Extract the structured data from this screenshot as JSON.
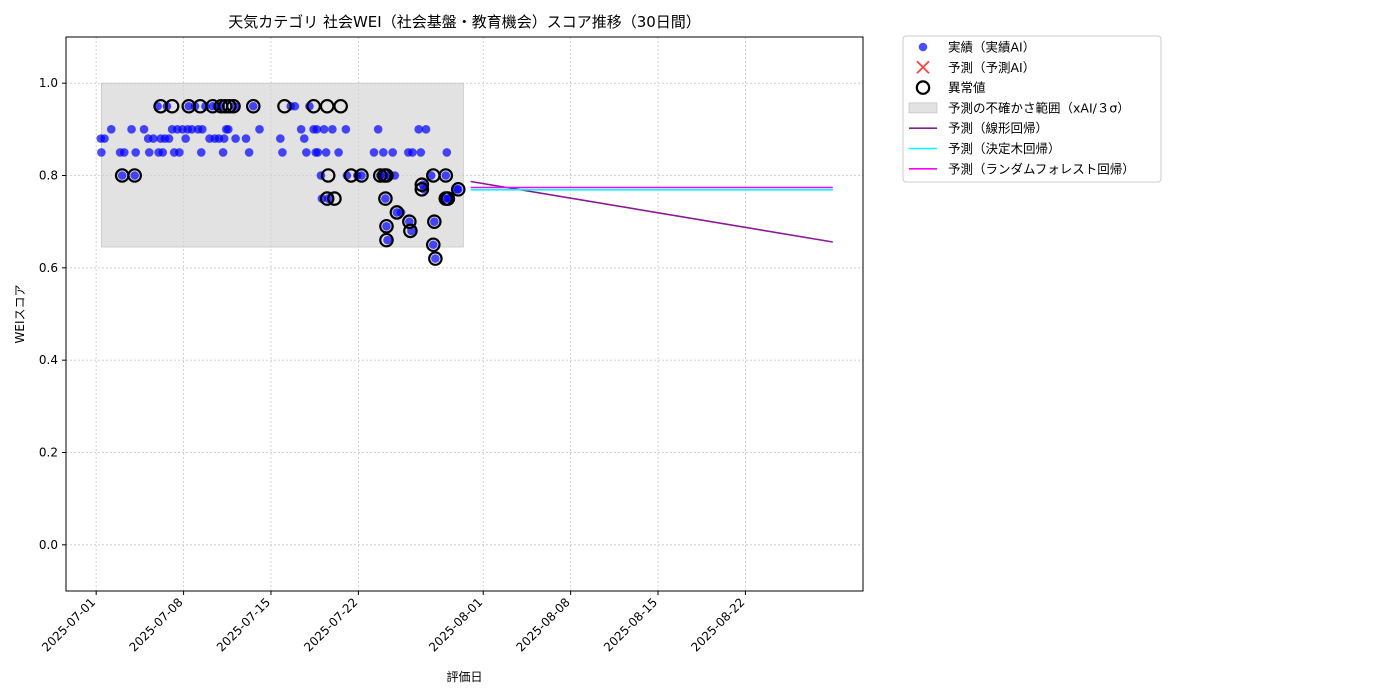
{
  "chart_data": {
    "type": "scatter",
    "title": "天気カテゴリ 社会WEI（社会基盤・教育機会）スコア推移（30日間）",
    "xlabel": "評価日",
    "ylabel": "WEIスコア",
    "xlim": [
      "2025-06-28T14:00",
      "2025-08-31T10:00"
    ],
    "ylim": [
      -0.1,
      1.1
    ],
    "x_ticks": [
      "2025-07-01",
      "2025-07-08",
      "2025-07-15",
      "2025-07-22",
      "2025-08-01",
      "2025-08-08",
      "2025-08-15",
      "2025-08-22"
    ],
    "y_ticks": [
      "0.0",
      "0.2",
      "0.4",
      "0.6",
      "0.8",
      "1.0"
    ],
    "grid": true,
    "legend_position": "outside-right",
    "colors": {
      "actual": "#0000ff",
      "forecast": "#ff0000",
      "anomaly_edge": "#000000",
      "uncertainty": "#d3d3d3",
      "linear": "#8b1a96",
      "tree": "#00ffff",
      "forest": "#ff00ff"
    },
    "legend": [
      {
        "key": "actual",
        "label": "実績（実績AI）",
        "marker": "dot"
      },
      {
        "key": "forecast",
        "label": "予測（予測AI）",
        "marker": "x"
      },
      {
        "key": "anomaly",
        "label": "異常値",
        "marker": "ring"
      },
      {
        "key": "uncertainty",
        "label": "予測の不確かさ範囲（xAI/３σ）",
        "marker": "band"
      },
      {
        "key": "linear",
        "label": "予測（線形回帰）",
        "marker": "line"
      },
      {
        "key": "tree",
        "label": "予測（決定木回帰）",
        "marker": "line"
      },
      {
        "key": "forest",
        "label": "予測（ランダムフォレスト回帰）",
        "marker": "line"
      }
    ],
    "uncertainty_band": {
      "x": [
        "2025-07-01T10:00",
        "2025-07-30T10:00"
      ],
      "y": [
        0.645,
        1.0
      ]
    },
    "actual_points": [
      [
        "2025-07-01T09:00",
        0.88
      ],
      [
        "2025-07-01T10:00",
        0.85
      ],
      [
        "2025-07-01T16:00",
        0.88
      ],
      [
        "2025-07-02T05:00",
        0.9
      ],
      [
        "2025-07-02T22:00",
        0.85
      ],
      [
        "2025-07-03T02:00",
        0.8
      ],
      [
        "2025-07-03T06:00",
        0.85
      ],
      [
        "2025-07-03T20:00",
        0.9
      ],
      [
        "2025-07-04T02:00",
        0.8
      ],
      [
        "2025-07-04T04:00",
        0.85
      ],
      [
        "2025-07-04T20:00",
        0.9
      ],
      [
        "2025-07-05T04:00",
        0.88
      ],
      [
        "2025-07-05T06:00",
        0.85
      ],
      [
        "2025-07-05T14:00",
        0.88
      ],
      [
        "2025-07-05T22:00",
        0.95
      ],
      [
        "2025-07-06T00:00",
        0.85
      ],
      [
        "2025-07-06T04:00",
        0.88
      ],
      [
        "2025-07-06T08:00",
        0.85
      ],
      [
        "2025-07-06T12:00",
        0.88
      ],
      [
        "2025-07-06T16:00",
        0.95
      ],
      [
        "2025-07-06T20:00",
        0.88
      ],
      [
        "2025-07-07T02:00",
        0.9
      ],
      [
        "2025-07-07T06:00",
        0.85
      ],
      [
        "2025-07-07T12:00",
        0.9
      ],
      [
        "2025-07-07T16:00",
        0.85
      ],
      [
        "2025-07-07T22:00",
        0.9
      ],
      [
        "2025-07-08T04:00",
        0.88
      ],
      [
        "2025-07-08T08:00",
        0.9
      ],
      [
        "2025-07-08T10:00",
        0.95
      ],
      [
        "2025-07-08T16:00",
        0.9
      ],
      [
        "2025-07-08T22:00",
        0.95
      ],
      [
        "2025-07-09T04:00",
        0.9
      ],
      [
        "2025-07-09T10:00",
        0.85
      ],
      [
        "2025-07-09T12:00",
        0.9
      ],
      [
        "2025-07-09T18:00",
        0.95
      ],
      [
        "2025-07-10T02:00",
        0.88
      ],
      [
        "2025-07-10T08:00",
        0.95
      ],
      [
        "2025-07-10T12:00",
        0.88
      ],
      [
        "2025-07-10T16:00",
        0.95
      ],
      [
        "2025-07-10T20:00",
        0.88
      ],
      [
        "2025-07-11T00:00",
        0.95
      ],
      [
        "2025-07-11T04:00",
        0.85
      ],
      [
        "2025-07-11T06:00",
        0.88
      ],
      [
        "2025-07-11T10:00",
        0.9
      ],
      [
        "2025-07-11T14:00",
        0.9
      ],
      [
        "2025-07-12T02:00",
        0.95
      ],
      [
        "2025-07-12T04:00",
        0.88
      ],
      [
        "2025-07-13T00:00",
        0.88
      ],
      [
        "2025-07-13T06:00",
        0.85
      ],
      [
        "2025-07-13T14:00",
        0.95
      ],
      [
        "2025-07-14T02:00",
        0.9
      ],
      [
        "2025-07-15T18:00",
        0.88
      ],
      [
        "2025-07-15T22:00",
        0.85
      ],
      [
        "2025-07-16T14:00",
        0.95
      ],
      [
        "2025-07-16T22:00",
        0.95
      ],
      [
        "2025-07-17T10:00",
        0.9
      ],
      [
        "2025-07-17T16:00",
        0.88
      ],
      [
        "2025-07-17T20:00",
        0.85
      ],
      [
        "2025-07-18T02:00",
        0.95
      ],
      [
        "2025-07-18T10:00",
        0.9
      ],
      [
        "2025-07-18T14:00",
        0.85
      ],
      [
        "2025-07-18T16:00",
        0.9
      ],
      [
        "2025-07-18T18:00",
        0.85
      ],
      [
        "2025-07-19T00:00",
        0.8
      ],
      [
        "2025-07-19T02:00",
        0.75
      ],
      [
        "2025-07-19T06:00",
        0.9
      ],
      [
        "2025-07-19T10:00",
        0.85
      ],
      [
        "2025-07-19T14:00",
        0.75
      ],
      [
        "2025-07-19T22:00",
        0.9
      ],
      [
        "2025-07-20T10:00",
        0.85
      ],
      [
        "2025-07-21T00:00",
        0.9
      ],
      [
        "2025-07-21T02:00",
        0.8
      ],
      [
        "2025-07-21T22:00",
        0.8
      ],
      [
        "2025-07-22T06:00",
        0.8
      ],
      [
        "2025-07-23T06:00",
        0.85
      ],
      [
        "2025-07-23T14:00",
        0.9
      ],
      [
        "2025-07-23T18:00",
        0.8
      ],
      [
        "2025-07-24T00:00",
        0.85
      ],
      [
        "2025-07-24T02:00",
        0.8
      ],
      [
        "2025-07-24T04:00",
        0.75
      ],
      [
        "2025-07-24T06:00",
        0.69
      ],
      [
        "2025-07-24T08:00",
        0.66
      ],
      [
        "2025-07-24T10:00",
        0.8
      ],
      [
        "2025-07-24T18:00",
        0.85
      ],
      [
        "2025-07-24T22:00",
        0.8
      ],
      [
        "2025-07-25T02:00",
        0.72
      ],
      [
        "2025-07-25T10:00",
        0.72
      ],
      [
        "2025-07-26T00:00",
        0.85
      ],
      [
        "2025-07-26T02:00",
        0.7
      ],
      [
        "2025-07-26T06:00",
        0.68
      ],
      [
        "2025-07-26T08:00",
        0.85
      ],
      [
        "2025-07-26T20:00",
        0.9
      ],
      [
        "2025-07-27T00:00",
        0.85
      ],
      [
        "2025-07-27T04:00",
        0.78
      ],
      [
        "2025-07-27T06:00",
        0.77
      ],
      [
        "2025-07-27T10:00",
        0.9
      ],
      [
        "2025-07-27T20:00",
        0.8
      ],
      [
        "2025-07-28T00:00",
        0.65
      ],
      [
        "2025-07-28T02:00",
        0.7
      ],
      [
        "2025-07-28T04:00",
        0.62
      ],
      [
        "2025-07-28T22:00",
        0.75
      ],
      [
        "2025-07-29T00:00",
        0.8
      ],
      [
        "2025-07-29T02:00",
        0.85
      ],
      [
        "2025-07-29T04:00",
        0.75
      ],
      [
        "2025-07-29T08:00",
        0.75
      ],
      [
        "2025-07-29T22:00",
        0.77
      ],
      [
        "2025-07-30T00:00",
        0.77
      ]
    ],
    "anomaly_points": [
      [
        "2025-07-03T02:00",
        0.8
      ],
      [
        "2025-07-04T02:00",
        0.8
      ],
      [
        "2025-07-06T04:00",
        0.95
      ],
      [
        "2025-07-07T02:00",
        0.95
      ],
      [
        "2025-07-08T10:00",
        0.95
      ],
      [
        "2025-07-09T08:00",
        0.95
      ],
      [
        "2025-07-10T08:00",
        0.95
      ],
      [
        "2025-07-11T00:00",
        0.95
      ],
      [
        "2025-07-11T08:00",
        0.95
      ],
      [
        "2025-07-11T16:00",
        0.95
      ],
      [
        "2025-07-12T00:00",
        0.95
      ],
      [
        "2025-07-13T14:00",
        0.95
      ],
      [
        "2025-07-16T02:00",
        0.95
      ],
      [
        "2025-07-18T10:00",
        0.95
      ],
      [
        "2025-07-19T12:00",
        0.95
      ],
      [
        "2025-07-20T14:00",
        0.95
      ],
      [
        "2025-07-19T14:00",
        0.8
      ],
      [
        "2025-07-19T12:00",
        0.75
      ],
      [
        "2025-07-20T02:00",
        0.75
      ],
      [
        "2025-07-21T10:00",
        0.8
      ],
      [
        "2025-07-22T06:00",
        0.8
      ],
      [
        "2025-07-23T18:00",
        0.8
      ],
      [
        "2025-07-24T02:00",
        0.8
      ],
      [
        "2025-07-24T06:00",
        0.8
      ],
      [
        "2025-07-24T04:00",
        0.75
      ],
      [
        "2025-07-24T06:00",
        0.69
      ],
      [
        "2025-07-24T06:00",
        0.66
      ],
      [
        "2025-07-25T02:00",
        0.72
      ],
      [
        "2025-07-26T02:00",
        0.7
      ],
      [
        "2025-07-26T04:00",
        0.68
      ],
      [
        "2025-07-27T02:00",
        0.78
      ],
      [
        "2025-07-27T02:00",
        0.77
      ],
      [
        "2025-07-28T00:00",
        0.8
      ],
      [
        "2025-07-28T02:00",
        0.7
      ],
      [
        "2025-07-28T00:00",
        0.65
      ],
      [
        "2025-07-28T04:00",
        0.62
      ],
      [
        "2025-07-29T00:00",
        0.8
      ],
      [
        "2025-07-29T00:00",
        0.75
      ],
      [
        "2025-07-29T04:00",
        0.75
      ],
      [
        "2025-07-30T00:00",
        0.77
      ]
    ],
    "series": [
      {
        "key": "linear",
        "x": [
          "2025-07-31T00:00",
          "2025-08-29T00:00"
        ],
        "y": [
          0.787,
          0.656
        ]
      },
      {
        "key": "tree",
        "x": [
          "2025-07-31T00:00",
          "2025-08-29T00:00"
        ],
        "y": [
          0.769,
          0.769
        ]
      },
      {
        "key": "forest",
        "x": [
          "2025-07-31T00:00",
          "2025-08-29T00:00"
        ],
        "y": [
          0.774,
          0.774
        ]
      }
    ]
  }
}
